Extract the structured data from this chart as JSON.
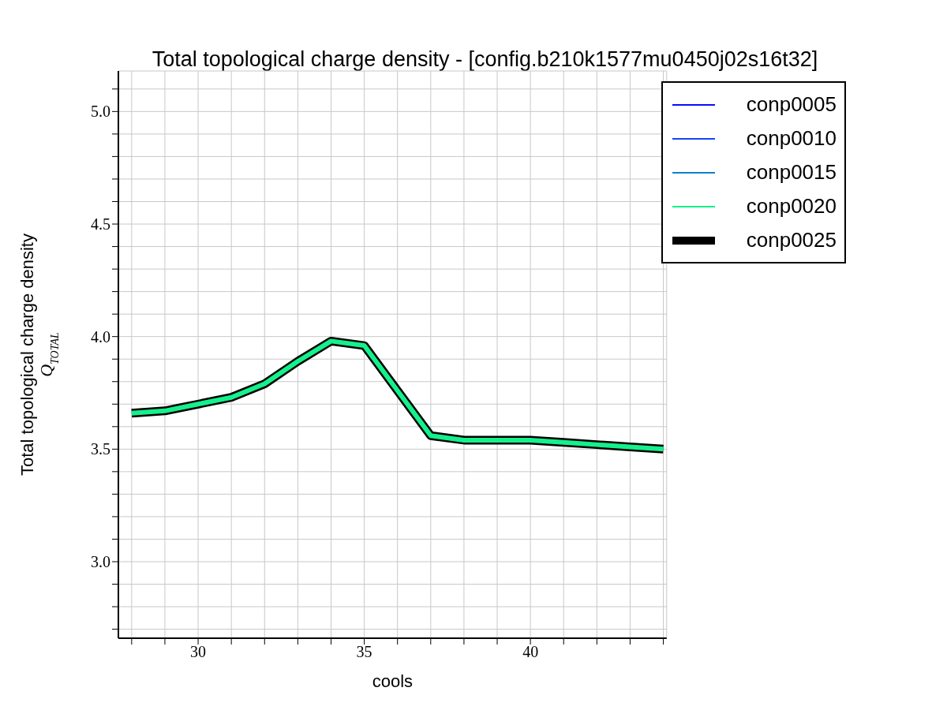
{
  "chart_data": {
    "type": "line",
    "title": "Total topological charge density - [config.b210k1577mu0450j02s16t32]",
    "xlabel": "cools",
    "ylabel": "Total topological charge density\nQ$_{TOTAL}$",
    "x": [
      28,
      29,
      30,
      31,
      32,
      33,
      34,
      35,
      37,
      38,
      39,
      40,
      41,
      42,
      43,
      44
    ],
    "series": [
      {
        "name": "conp0005",
        "color": "#0a0aff",
        "values": [
          null,
          null,
          null,
          null,
          null,
          null,
          null,
          null,
          null,
          null,
          null,
          null,
          null,
          null,
          null,
          null
        ]
      },
      {
        "name": "conp0010",
        "color": "#1446f0",
        "values": [
          null,
          null,
          null,
          null,
          null,
          null,
          null,
          null,
          null,
          null,
          null,
          null,
          null,
          null,
          null,
          null
        ]
      },
      {
        "name": "conp0015",
        "color": "#0a82c8",
        "values": [
          null,
          null,
          null,
          null,
          null,
          null,
          null,
          null,
          null,
          null,
          null,
          null,
          null,
          null,
          null,
          null
        ]
      },
      {
        "name": "conp0020",
        "color": "#14f08c",
        "values": [
          3.66,
          3.67,
          3.7,
          3.73,
          3.79,
          3.89,
          3.98,
          3.96,
          3.56,
          3.54,
          3.54,
          3.54,
          3.53,
          3.52,
          3.51,
          3.5
        ]
      },
      {
        "name": "conp0025",
        "color": "#000000",
        "values": [
          3.66,
          3.67,
          3.7,
          3.73,
          3.79,
          3.89,
          3.98,
          3.96,
          3.56,
          3.54,
          3.54,
          3.54,
          3.53,
          3.52,
          3.51,
          3.5
        ]
      }
    ],
    "xlim": [
      27.6,
      44.1
    ],
    "xticks": [
      {
        "value": 28,
        "label": null
      },
      {
        "value": 29,
        "label": null
      },
      30,
      {
        "value": 31,
        "label": null
      },
      {
        "value": 32,
        "label": null
      },
      {
        "value": 33,
        "label": null
      },
      {
        "value": 34,
        "label": null
      },
      35,
      {
        "value": 36,
        "label": null
      },
      {
        "value": 37,
        "label": null
      },
      {
        "value": 38,
        "label": null
      },
      {
        "value": 39,
        "label": null
      },
      40,
      {
        "value": 41,
        "label": null
      },
      {
        "value": 42,
        "label": null
      },
      {
        "value": 43,
        "label": null
      },
      {
        "value": 44,
        "label": null
      }
    ],
    "ylim": [
      2.66,
      5.18
    ],
    "yticks": [
      {
        "value": 2.7,
        "label": null
      },
      {
        "value": 2.8,
        "label": null
      },
      {
        "value": 2.9,
        "label": null
      },
      {
        "value": 3,
        "label": "3.0"
      },
      {
        "value": 3.1,
        "label": null
      },
      {
        "value": 3.2,
        "label": null
      },
      {
        "value": 3.3,
        "label": null
      },
      {
        "value": 3.4,
        "label": null
      },
      {
        "value": 3.5,
        "label": "3.5"
      },
      {
        "value": 3.6,
        "label": null
      },
      {
        "value": 3.7,
        "label": null
      },
      {
        "value": 3.8,
        "label": null
      },
      {
        "value": 3.9,
        "label": null
      },
      {
        "value": 4,
        "label": "4.0"
      },
      {
        "value": 4.1,
        "label": null
      },
      {
        "value": 4.2,
        "label": null
      },
      {
        "value": 4.3,
        "label": null
      },
      {
        "value": 4.4,
        "label": null
      },
      {
        "value": 4.5,
        "label": "4.5"
      },
      {
        "value": 4.6,
        "label": null
      },
      {
        "value": 4.7,
        "label": null
      },
      {
        "value": 4.8,
        "label": null
      },
      {
        "value": 4.9,
        "label": null
      },
      {
        "value": 5,
        "label": "5.0"
      },
      {
        "value": 5.1,
        "label": null
      }
    ],
    "grid": true,
    "legend": "top right",
    "marker": "none",
    "line_style": "solid"
  }
}
